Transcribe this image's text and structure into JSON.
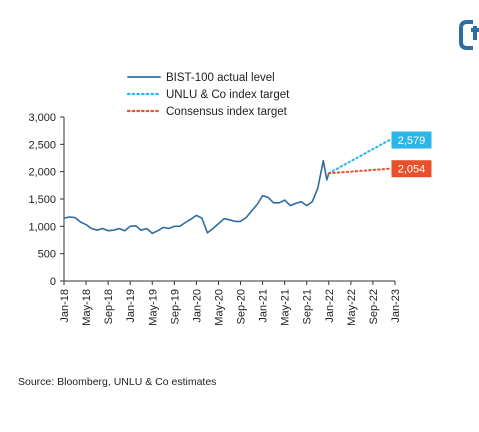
{
  "source": "Source: Bloomberg, UNLU & Co estimates",
  "chart_data": {
    "type": "line",
    "title": "",
    "xlabel": "",
    "ylabel": "",
    "ylim": [
      0,
      3000
    ],
    "y_ticks": [
      {
        "value": 0,
        "label": "0"
      },
      {
        "value": 500,
        "label": "500"
      },
      {
        "value": 1000,
        "label": "1,000"
      },
      {
        "value": 1500,
        "label": "1,500"
      },
      {
        "value": 2000,
        "label": "2,000"
      },
      {
        "value": 2500,
        "label": "2,500"
      },
      {
        "value": 3000,
        "label": "3,000"
      }
    ],
    "x_range": [
      "2018-01",
      "2023-01"
    ],
    "x_ticks": [
      "Jan-18",
      "May-18",
      "Sep-18",
      "Jan-19",
      "May-19",
      "Sep-19",
      "Jan-20",
      "May-20",
      "Sep-20",
      "Jan-21",
      "May-21",
      "Sep-21",
      "Jan-22",
      "May-22",
      "Sep-22",
      "Jan-23"
    ],
    "grid": false,
    "legend_position": "top",
    "series": [
      {
        "name": "BIST-100 actual level",
        "color": "#2e6da4",
        "style": "solid",
        "points": [
          [
            "2018-01",
            1150
          ],
          [
            "2018-02",
            1170
          ],
          [
            "2018-03",
            1160
          ],
          [
            "2018-04",
            1080
          ],
          [
            "2018-05",
            1030
          ],
          [
            "2018-06",
            960
          ],
          [
            "2018-07",
            930
          ],
          [
            "2018-08",
            960
          ],
          [
            "2018-09",
            920
          ],
          [
            "2018-10",
            930
          ],
          [
            "2018-11",
            960
          ],
          [
            "2018-12",
            920
          ],
          [
            "2019-01",
            1000
          ],
          [
            "2019-02",
            1010
          ],
          [
            "2019-03",
            930
          ],
          [
            "2019-04",
            960
          ],
          [
            "2019-05",
            870
          ],
          [
            "2019-06",
            920
          ],
          [
            "2019-07",
            980
          ],
          [
            "2019-08",
            960
          ],
          [
            "2019-09",
            1000
          ],
          [
            "2019-10",
            1000
          ],
          [
            "2019-11",
            1070
          ],
          [
            "2019-12",
            1130
          ],
          [
            "2020-01",
            1200
          ],
          [
            "2020-02",
            1150
          ],
          [
            "2020-03",
            880
          ],
          [
            "2020-04",
            960
          ],
          [
            "2020-05",
            1050
          ],
          [
            "2020-06",
            1140
          ],
          [
            "2020-07",
            1120
          ],
          [
            "2020-08",
            1090
          ],
          [
            "2020-09",
            1090
          ],
          [
            "2020-10",
            1160
          ],
          [
            "2020-11",
            1280
          ],
          [
            "2020-12",
            1400
          ],
          [
            "2021-01",
            1560
          ],
          [
            "2021-02",
            1530
          ],
          [
            "2021-03",
            1430
          ],
          [
            "2021-04",
            1430
          ],
          [
            "2021-05",
            1480
          ],
          [
            "2021-06",
            1380
          ],
          [
            "2021-07",
            1420
          ],
          [
            "2021-08",
            1450
          ],
          [
            "2021-09",
            1380
          ],
          [
            "2021-10",
            1450
          ],
          [
            "2021-11",
            1700
          ],
          [
            "2021-12",
            2200
          ],
          [
            "2021-12-20",
            1850
          ],
          [
            "2022-01",
            1970
          ]
        ]
      },
      {
        "name": "UNLU & Co index target",
        "color": "#2bb5e8",
        "style": "dotted",
        "points": [
          [
            "2022-01",
            1970
          ],
          [
            "2022-12",
            2579
          ]
        ],
        "end_label": "2,579"
      },
      {
        "name": "Consensus index target",
        "color": "#e8502b",
        "style": "dotted",
        "points": [
          [
            "2022-01",
            1970
          ],
          [
            "2022-12",
            2054
          ]
        ],
        "end_label": "2,054"
      }
    ]
  }
}
